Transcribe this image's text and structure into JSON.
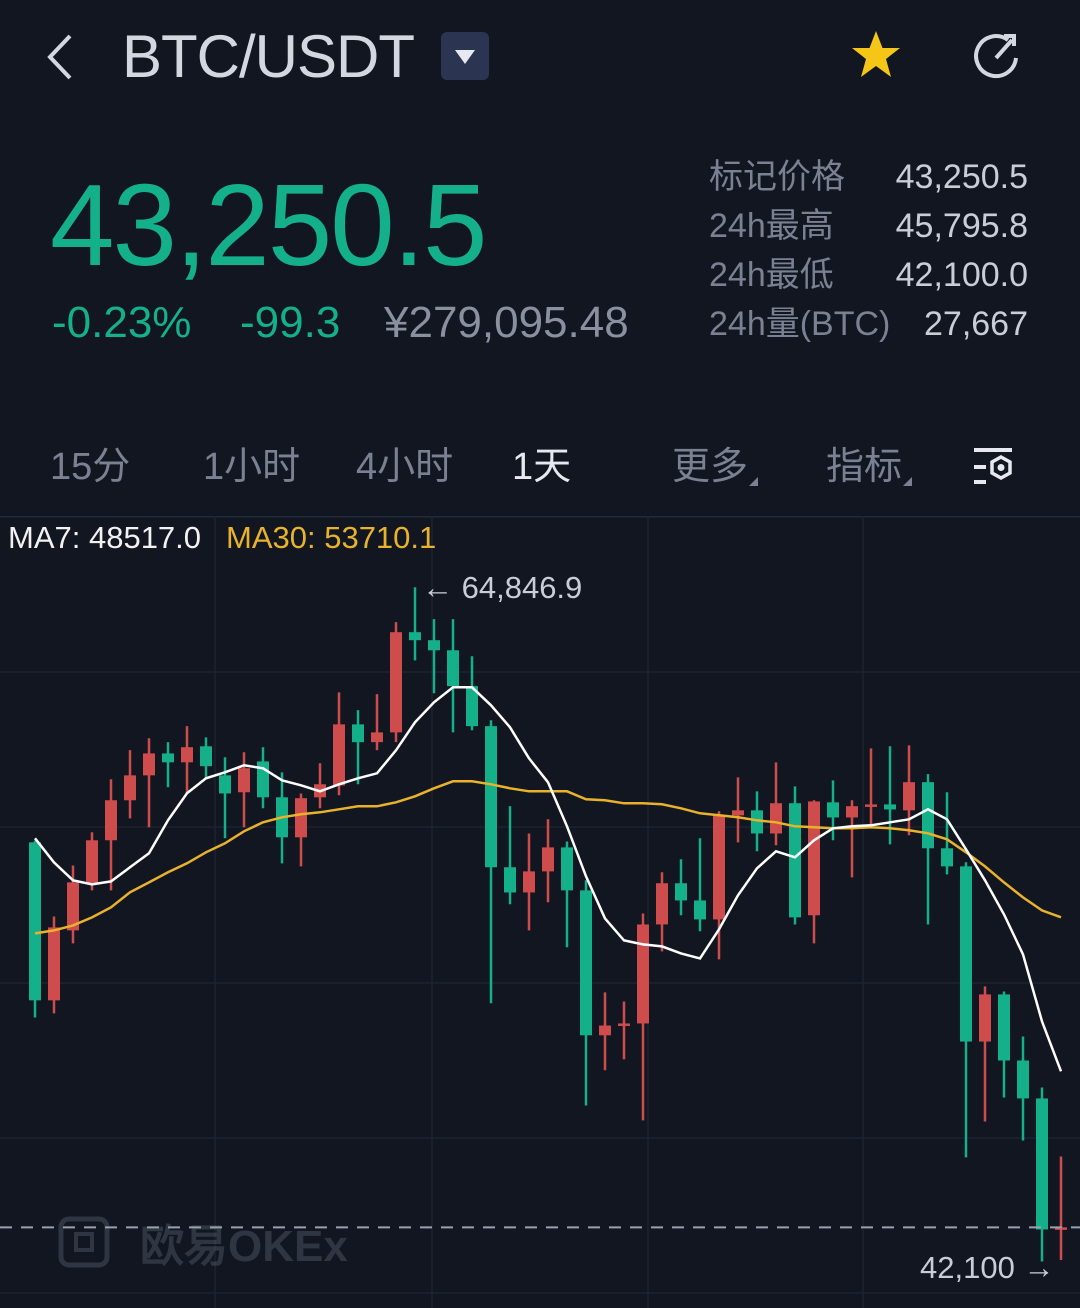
{
  "header": {
    "pair": "BTC/USDT",
    "favorite": true,
    "icons": [
      "back-chevron-icon",
      "dropdown-icon",
      "star-icon",
      "refresh-icon"
    ]
  },
  "ticker": {
    "last_price": "43,250.5",
    "change_pct": "-0.23%",
    "change_abs": "-99.3",
    "price_cny": "¥279,095.48",
    "stats": [
      {
        "label": "标记价格",
        "value": "43,250.5"
      },
      {
        "label": "24h最高",
        "value": "45,795.8"
      },
      {
        "label": "24h最低",
        "value": "42,100.0"
      },
      {
        "label": "24h量(BTC)",
        "value": "27,667"
      }
    ]
  },
  "tabs": [
    {
      "label": "15分",
      "active": false
    },
    {
      "label": "1小时",
      "active": false
    },
    {
      "label": "4小时",
      "active": false
    },
    {
      "label": "1天",
      "active": true
    },
    {
      "label": "更多",
      "active": false
    },
    {
      "label": "指标",
      "active": false
    }
  ],
  "colors": {
    "background": "#111621",
    "up": "#cf4c4c",
    "down": "#14b08a",
    "ma7": "#ffffff",
    "ma30": "#e8b22b",
    "price_green": "#14b08a"
  },
  "watermark": {
    "text": "欧易OKEx"
  },
  "chart_data": {
    "type": "candlestick",
    "interval": "1天",
    "ylim": [
      40800,
      67250
    ],
    "grid": true,
    "legend": {
      "ma7_label": "MA7: 48517.0",
      "ma30_label": "MA30: 53710.1"
    },
    "high_marker": "← 64,846.9",
    "low_marker": "42,100 →",
    "last_price_line": 43250.5,
    "candles": [
      [
        56240,
        56300,
        50330,
        50910
      ],
      [
        50910,
        53740,
        50470,
        53370
      ],
      [
        53270,
        55460,
        52830,
        54890
      ],
      [
        54860,
        56580,
        54620,
        56310
      ],
      [
        56310,
        58370,
        54620,
        57660
      ],
      [
        57660,
        59350,
        57050,
        58500
      ],
      [
        58500,
        59750,
        56750,
        59240
      ],
      [
        59240,
        59620,
        58100,
        58940
      ],
      [
        58940,
        60160,
        57890,
        59450
      ],
      [
        59480,
        59780,
        58430,
        58810
      ],
      [
        58500,
        59110,
        56380,
        57890
      ],
      [
        57930,
        59280,
        56750,
        58740
      ],
      [
        58970,
        59450,
        57390,
        57760
      ],
      [
        57760,
        58600,
        55530,
        56410
      ],
      [
        56410,
        57890,
        55430,
        57730
      ],
      [
        57760,
        58910,
        57390,
        58200
      ],
      [
        58160,
        61300,
        57830,
        60220
      ],
      [
        60220,
        60700,
        58200,
        59620
      ],
      [
        59620,
        61240,
        59350,
        59950
      ],
      [
        59950,
        63670,
        59620,
        63330
      ],
      [
        63330,
        64846.9,
        62380,
        63060
      ],
      [
        63060,
        63770,
        61270,
        62720
      ],
      [
        62720,
        63770,
        59950,
        61510
      ],
      [
        61510,
        62520,
        60020,
        60160
      ],
      [
        60160,
        60360,
        50810,
        55400
      ],
      [
        55400,
        57460,
        54150,
        54550
      ],
      [
        54550,
        56540,
        53270,
        55260
      ],
      [
        55260,
        57020,
        54220,
        56070
      ],
      [
        56070,
        56270,
        52700,
        54620
      ],
      [
        54620,
        54960,
        47360,
        49730
      ],
      [
        49730,
        51180,
        48550,
        50060
      ],
      [
        50060,
        50870,
        48920,
        50130
      ],
      [
        50130,
        53840,
        46860,
        53470
      ],
      [
        53470,
        55230,
        52560,
        54860
      ],
      [
        54860,
        55670,
        53780,
        54280
      ],
      [
        54280,
        56380,
        53240,
        53640
      ],
      [
        53640,
        57290,
        52290,
        57150
      ],
      [
        57150,
        58430,
        56240,
        57320
      ],
      [
        57320,
        57960,
        55940,
        56540
      ],
      [
        56540,
        58940,
        56140,
        57560
      ],
      [
        57560,
        58130,
        53470,
        53710
      ],
      [
        53780,
        57660,
        52830,
        57620
      ],
      [
        57590,
        58330,
        56310,
        57080
      ],
      [
        57080,
        57660,
        55060,
        57460
      ],
      [
        57490,
        59410,
        56780,
        57520
      ],
      [
        57520,
        59480,
        56170,
        57350
      ],
      [
        57320,
        59510,
        56480,
        58270
      ],
      [
        58270,
        58540,
        53470,
        56040
      ],
      [
        56040,
        57930,
        55160,
        55430
      ],
      [
        55430,
        55570,
        45610,
        49520
      ],
      [
        49520,
        51380,
        46820,
        51110
      ],
      [
        51110,
        51210,
        47630,
        48880
      ],
      [
        48880,
        49690,
        46180,
        47600
      ],
      [
        47600,
        47970,
        42100,
        43180
      ],
      [
        43180,
        45640,
        42150,
        43250.5
      ]
    ],
    "candle_fields": [
      "open",
      "high",
      "low",
      "close"
    ],
    "ma7": [
      56375,
      55565,
      54958,
      54823,
      54924,
      55397,
      55869,
      56983,
      57894,
      58400,
      58603,
      58839,
      58738,
      58333,
      58164,
      57962,
      58198,
      58400,
      58569,
      59345,
      60290,
      60965,
      61472,
      61472,
      60864,
      60122,
      59075,
      58265,
      56780,
      55093,
      53675,
      52933,
      52798,
      52730,
      52494,
      52325,
      53304,
      54452,
      55363,
      55937,
      55734,
      56308,
      56713,
      56780,
      56814,
      56915,
      57017,
      57354,
      57017,
      56004,
      54958,
      53810,
      52460,
      50199,
      48517.0
    ],
    "ma30": [
      53169,
      53270,
      53439,
      53709,
      54047,
      54553,
      54890,
      55228,
      55532,
      55903,
      56207,
      56612,
      56915,
      57084,
      57185,
      57253,
      57354,
      57455,
      57455,
      57590,
      57793,
      58063,
      58299,
      58299,
      58198,
      58063,
      57962,
      57962,
      57962,
      57692,
      57658,
      57557,
      57557,
      57523,
      57388,
      57219,
      57152,
      57084,
      56983,
      56915,
      56780,
      56747,
      56713,
      56713,
      56747,
      56713,
      56645,
      56544,
      56342,
      55903,
      55430,
      54890,
      54384,
      53945,
      53710.1
    ]
  }
}
